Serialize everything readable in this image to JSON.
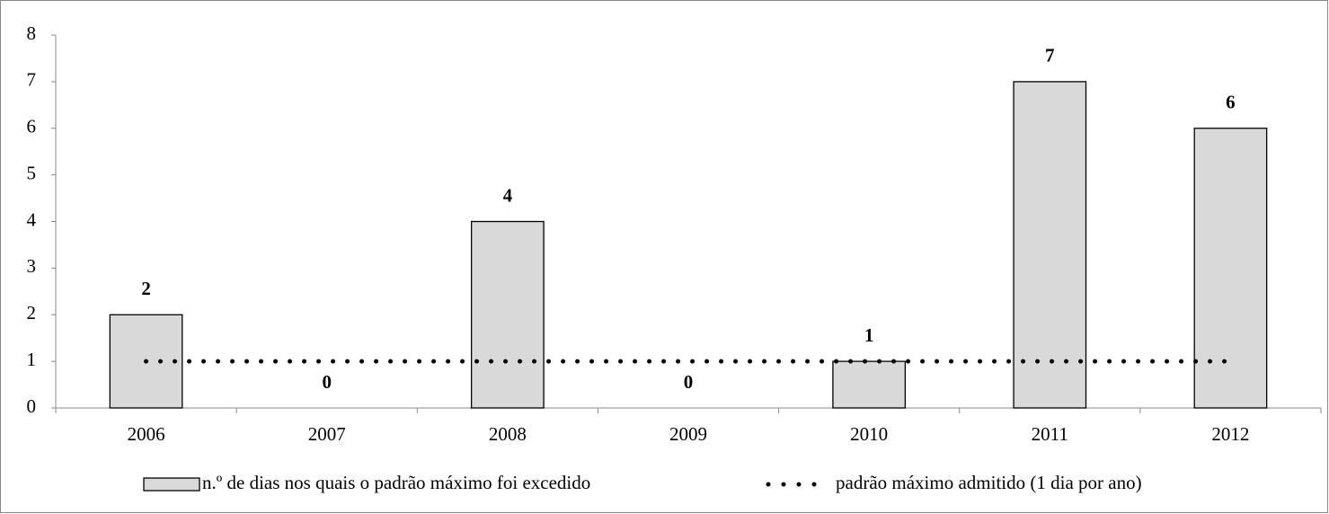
{
  "chart_data": {
    "type": "bar",
    "categories": [
      "2006",
      "2007",
      "2008",
      "2009",
      "2010",
      "2011",
      "2012"
    ],
    "series": [
      {
        "name": "n.º de dias nos quais o padrão máximo foi excedido",
        "type": "bar",
        "color": "#d9d9d9",
        "values": [
          2,
          0,
          4,
          0,
          1,
          7,
          6
        ]
      },
      {
        "name": "padrão máximo admitido (1 dia por ano)",
        "type": "line",
        "color": "#000000",
        "values": [
          1,
          1,
          1,
          1,
          1,
          1,
          1
        ]
      }
    ],
    "ylim": [
      0,
      8
    ],
    "yticks": [
      0,
      1,
      2,
      3,
      4,
      5,
      6,
      7,
      8
    ],
    "data_labels": true,
    "legend": "bottom"
  }
}
